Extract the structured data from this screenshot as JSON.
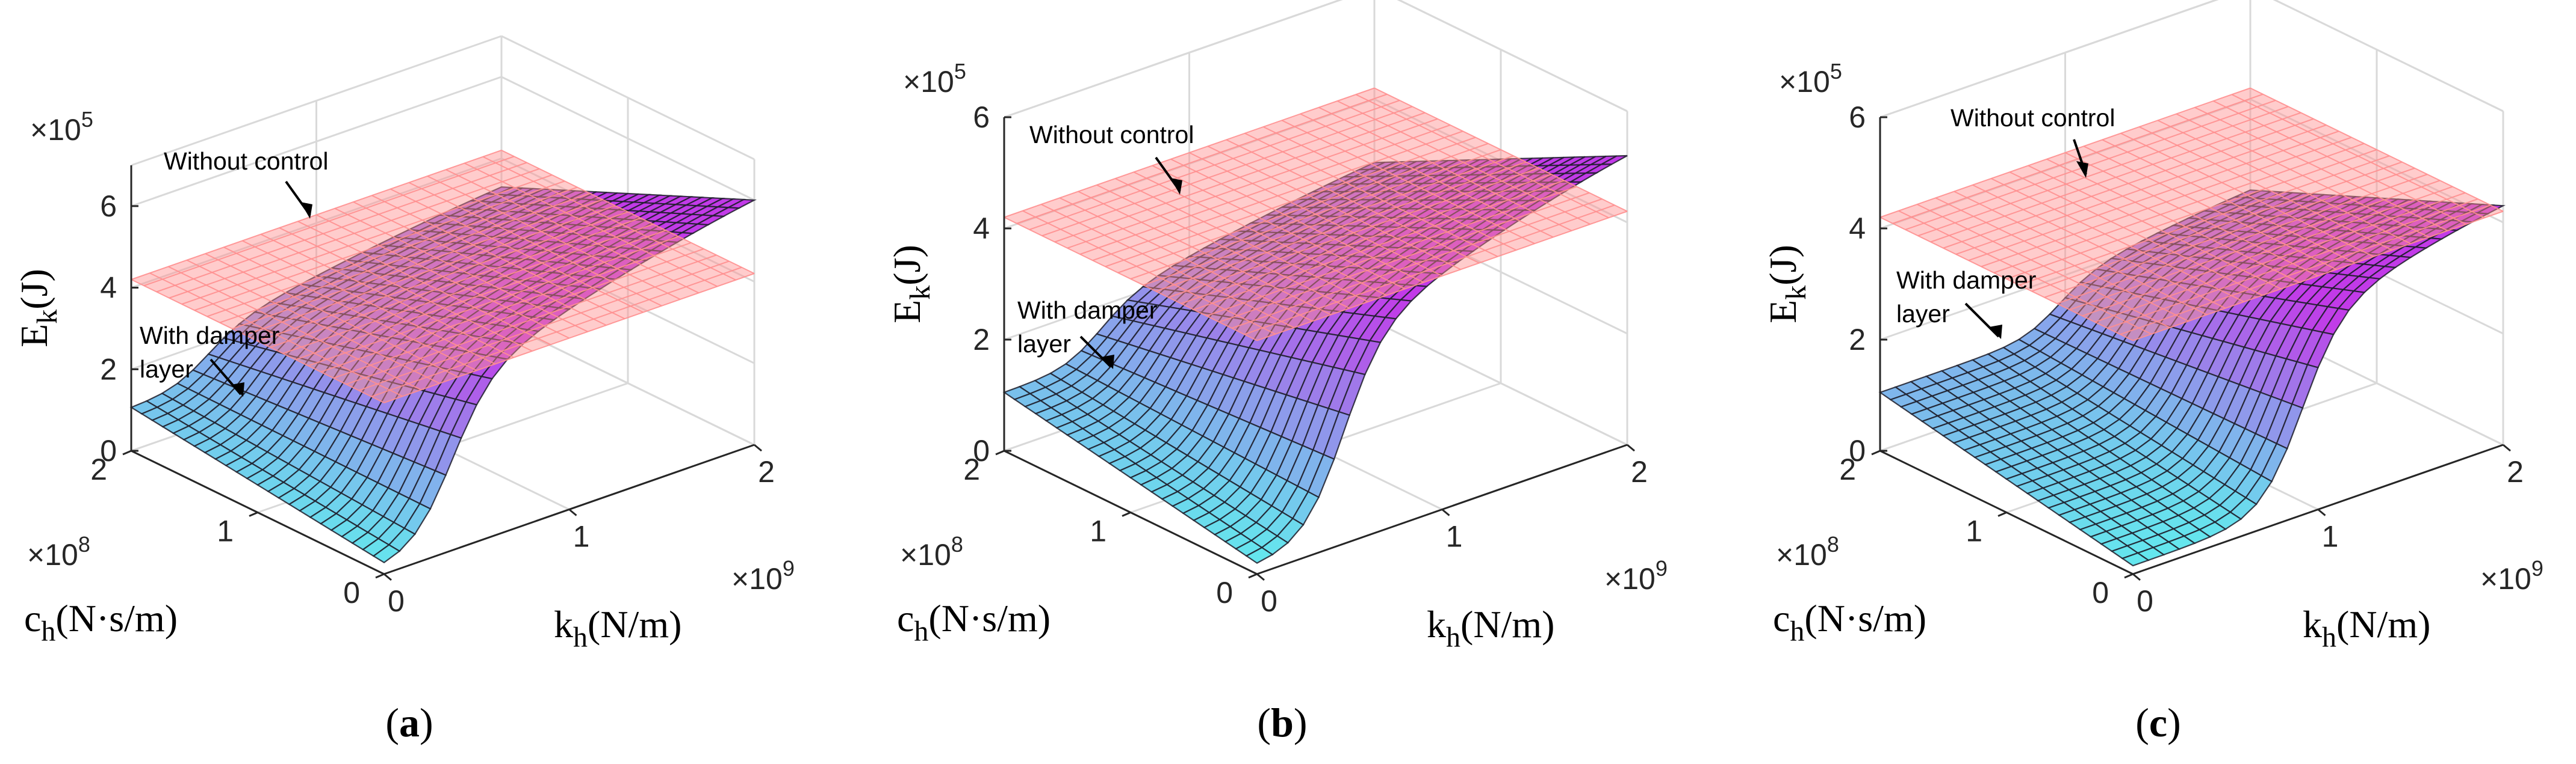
{
  "chart_data": [
    {
      "type": "surface3d",
      "caption": "(a)",
      "z_axis": {
        "label": "E",
        "label_sub": "k",
        "label_tail": "(J)",
        "multiplier": "×10",
        "multiplier_exp": "5",
        "ticks": [
          "0",
          "2",
          "4",
          "6"
        ],
        "range": [
          0,
          7
        ]
      },
      "y_axis": {
        "label": "c",
        "label_sub": "h",
        "label_tail": "(N·s/m)",
        "multiplier": "×10",
        "multiplier_exp": "8",
        "ticks": [
          "0",
          "1",
          "2"
        ],
        "range": [
          0,
          2
        ]
      },
      "x_axis": {
        "label": "k",
        "label_sub": "h",
        "label_tail": "(N/m)",
        "multiplier": "×10",
        "multiplier_exp": "9",
        "ticks": [
          "0",
          "1",
          "2"
        ],
        "range": [
          0,
          2
        ]
      },
      "series": [
        {
          "name": "Without control",
          "plane_value": 4.2
        },
        {
          "name": "With damper layer",
          "edge_max": 6.0,
          "cliff_k": 0.35
        }
      ],
      "annotations": [
        "Without control",
        "With damper",
        "layer"
      ]
    },
    {
      "type": "surface3d",
      "caption": "(b)",
      "z_axis": {
        "label": "E",
        "label_sub": "k",
        "label_tail": "(J)",
        "multiplier": "×10",
        "multiplier_exp": "5",
        "ticks": [
          "0",
          "2",
          "4",
          "6"
        ],
        "range": [
          0,
          6
        ]
      },
      "y_axis": {
        "label": "c",
        "label_sub": "h",
        "label_tail": "(N·s/m)",
        "multiplier": "×10",
        "multiplier_exp": "8",
        "ticks": [
          "0",
          "1",
          "2"
        ],
        "range": [
          0,
          2
        ]
      },
      "x_axis": {
        "label": "k",
        "label_sub": "h",
        "label_tail": "(N/m)",
        "multiplier": "×10",
        "multiplier_exp": "9",
        "ticks": [
          "0",
          "1",
          "2"
        ],
        "range": [
          0,
          2
        ]
      },
      "series": [
        {
          "name": "Without control",
          "plane_value": 4.2
        },
        {
          "name": "With damper layer",
          "edge_max": 5.2,
          "cliff_k": 0.45
        }
      ],
      "annotations": [
        "Without control",
        "With damper",
        "layer"
      ]
    },
    {
      "type": "surface3d",
      "caption": "(c)",
      "z_axis": {
        "label": "E",
        "label_sub": "k",
        "label_tail": "(J)",
        "multiplier": "×10",
        "multiplier_exp": "5",
        "ticks": [
          "0",
          "2",
          "4",
          "6"
        ],
        "range": [
          0,
          6
        ]
      },
      "y_axis": {
        "label": "c",
        "label_sub": "h",
        "label_tail": "(N·s/m)",
        "multiplier": "×10",
        "multiplier_exp": "8",
        "ticks": [
          "0",
          "1",
          "2"
        ],
        "range": [
          0,
          2
        ]
      },
      "x_axis": {
        "label": "k",
        "label_sub": "h",
        "label_tail": "(N/m)",
        "multiplier": "×10",
        "multiplier_exp": "9",
        "ticks": [
          "0",
          "1",
          "2"
        ],
        "range": [
          0,
          2
        ]
      },
      "series": [
        {
          "name": "Without control",
          "plane_value": 4.2
        },
        {
          "name": "With damper layer",
          "edge_max": 4.3,
          "cliff_k": 0.9
        }
      ],
      "annotations": [
        "Without control",
        "With damper",
        "layer"
      ]
    }
  ],
  "colors": {
    "plane": "#ff8f8f",
    "low": "#5ff0ee",
    "high": "#c23ae8",
    "mesh": "#1d1d2a",
    "grid": "#d9d9d9",
    "axis": "#262626"
  }
}
